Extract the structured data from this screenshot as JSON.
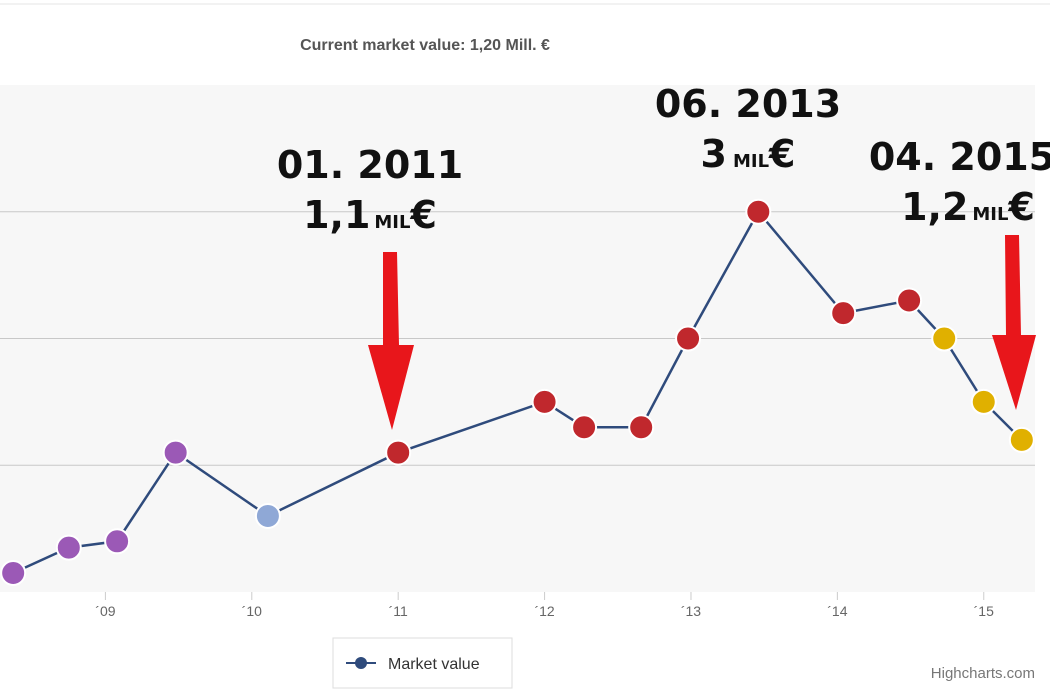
{
  "chart_data": {
    "type": "line",
    "title": "Current market value: 1,20 Mill. €",
    "x": [
      2008.37,
      2008.75,
      2009.08,
      2009.48,
      2010.11,
      2011.0,
      2012.0,
      2012.27,
      2012.66,
      2012.98,
      2013.46,
      2014.04,
      2014.49,
      2014.73,
      2015.0,
      2015.26
    ],
    "series": [
      {
        "name": "Market value",
        "color": "#2f4b7c",
        "values": [
          0.15,
          0.35,
          0.4,
          1.1,
          0.6,
          1.1,
          1.5,
          1.3,
          1.3,
          2.0,
          3.0,
          2.2,
          2.3,
          2.0,
          1.5,
          1.2
        ]
      }
    ],
    "marker_colors": [
      "#9b59b6",
      "#9b59b6",
      "#9b59b6",
      "#9b59b6",
      "#8fa8d6",
      "#c0282d",
      "#c0282d",
      "#c0282d",
      "#c0282d",
      "#c0282d",
      "#c0282d",
      "#c0282d",
      "#c0282d",
      "#e0b000",
      "#e0b000",
      "#e0b000"
    ],
    "xlim": [
      2008.28,
      2015.35
    ],
    "xticks": [
      {
        "value": 2009,
        "label": "´09"
      },
      {
        "value": 2010,
        "label": "´10"
      },
      {
        "value": 2011,
        "label": "´11"
      },
      {
        "value": 2012,
        "label": "´12"
      },
      {
        "value": 2013,
        "label": "´13"
      },
      {
        "value": 2014,
        "label": "´14"
      },
      {
        "value": 2015,
        "label": "´15"
      }
    ],
    "ylim": [
      0,
      4
    ],
    "yticks": [
      1,
      2,
      3
    ],
    "grid": true,
    "annotations": [
      {
        "date": "01. 2011",
        "amount": "1,1",
        "unit": "MIL",
        "currency": "€"
      },
      {
        "date": "06. 2013",
        "amount": "3",
        "unit": "MIL",
        "currency": "€"
      },
      {
        "date": "04. 2015",
        "amount": "1,2",
        "unit": "MIL",
        "currency": "€"
      }
    ],
    "credit": "Highcharts.com"
  }
}
